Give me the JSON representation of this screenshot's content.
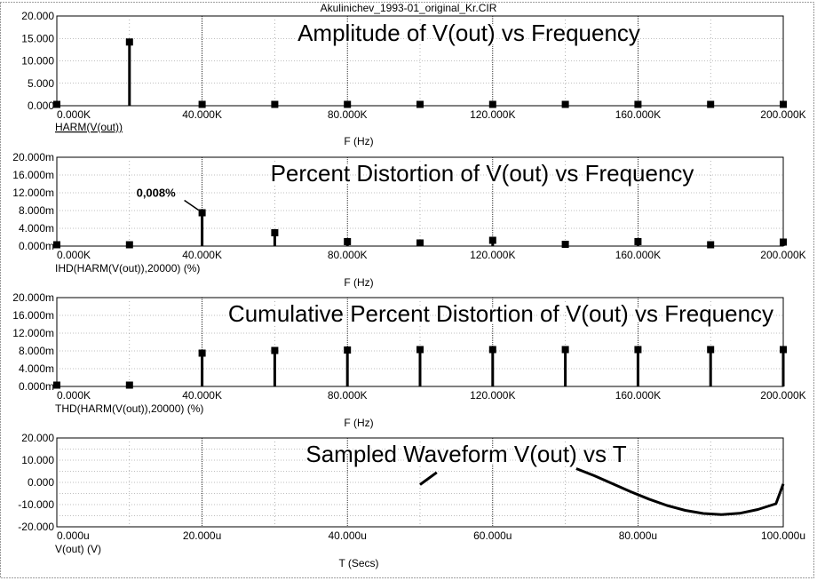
{
  "window_title": "Akulinichev_1993-01_original_Kr.CIR",
  "colors": {
    "plot": "#000000",
    "grid_major": "#000000",
    "grid_minor": "#808080",
    "background": "#ffffff"
  },
  "chart_data": [
    {
      "type": "bar",
      "title": "Amplitude of V(out) vs Frequency",
      "trace_label": "HARM(V(out))",
      "xlabel": "F (Hz)",
      "xlim": [
        0,
        200000
      ],
      "ylim": [
        0,
        20
      ],
      "x_ticks": [
        "0.000K",
        "40.000K",
        "80.000K",
        "120.000K",
        "160.000K",
        "200.000K"
      ],
      "y_ticks": [
        "0.000",
        "5.000",
        "10.000",
        "15.000",
        "20.000"
      ],
      "x": [
        0,
        20000,
        40000,
        60000,
        80000,
        100000,
        120000,
        140000,
        160000,
        180000,
        200000
      ],
      "values": [
        0,
        14.2,
        0.001,
        0.0005,
        0.0002,
        0.0001,
        0.0002,
        0.0001,
        0.0002,
        0.0001,
        0.0001
      ],
      "grid": true
    },
    {
      "type": "bar",
      "title": "Percent Distortion of V(out) vs Frequency",
      "trace_label": "IHD(HARM(V(out)),20000) (%)",
      "xlabel": "F (Hz)",
      "xlim": [
        0,
        200000
      ],
      "ylim": [
        0,
        0.02
      ],
      "x_ticks": [
        "0.000K",
        "40.000K",
        "80.000K",
        "120.000K",
        "160.000K",
        "200.000K"
      ],
      "y_ticks": [
        "0.000m",
        "4.000m",
        "8.000m",
        "12.000m",
        "16.000m",
        "20.000m"
      ],
      "x": [
        0,
        20000,
        40000,
        60000,
        80000,
        100000,
        120000,
        140000,
        160000,
        180000,
        200000
      ],
      "values": [
        0,
        0,
        0.0075,
        0.003,
        0.001,
        0.0007,
        0.0013,
        0.0004,
        0.001,
        0.0003,
        0.0009
      ],
      "annotation": {
        "text": "0,008%",
        "x": 40000,
        "y": 0.0075
      },
      "grid": true
    },
    {
      "type": "bar",
      "title": "Cumulative Percent Distortion of V(out) vs Frequency",
      "trace_label": "THD(HARM(V(out)),20000) (%)",
      "xlabel": "F (Hz)",
      "xlim": [
        0,
        200000
      ],
      "ylim": [
        0,
        0.02
      ],
      "x_ticks": [
        "0.000K",
        "40.000K",
        "80.000K",
        "120.000K",
        "160.000K",
        "200.000K"
      ],
      "y_ticks": [
        "0.000m",
        "4.000m",
        "8.000m",
        "12.000m",
        "16.000m",
        "20.000m"
      ],
      "x": [
        0,
        20000,
        40000,
        60000,
        80000,
        100000,
        120000,
        140000,
        160000,
        180000,
        200000
      ],
      "values": [
        0,
        0,
        0.0075,
        0.0081,
        0.0082,
        0.0083,
        0.0083,
        0.0083,
        0.0083,
        0.0083,
        0.0083
      ],
      "grid": true
    },
    {
      "type": "line",
      "title": "Sampled Waveform  V(out) vs T",
      "trace_label": "V(out) (V)",
      "xlabel": "T (Secs)",
      "xlim": [
        0,
        0.0001
      ],
      "ylim": [
        -20,
        20
      ],
      "x_ticks": [
        "0.000u",
        "20.000u",
        "40.000u",
        "60.000u",
        "80.000u",
        "100.000u"
      ],
      "y_ticks": [
        "-20.000",
        "-10.000",
        "0.000",
        "10.000",
        "20.000"
      ],
      "segments": [
        {
          "x": [
            5e-05,
            5.23e-05
          ],
          "y": [
            -1.0,
            4.5
          ]
        },
        {
          "x": [
            7.15e-05,
            7.4e-05,
            7.65e-05,
            7.9e-05,
            8.15e-05,
            8.4e-05,
            8.65e-05,
            8.9e-05,
            9.15e-05,
            9.4e-05,
            9.65e-05,
            9.9e-05,
            0.0001
          ],
          "y": [
            6.2,
            3.0,
            -0.6,
            -4.2,
            -7.5,
            -10.4,
            -12.6,
            -14.0,
            -14.5,
            -13.9,
            -12.2,
            -9.6,
            -0.7
          ]
        }
      ],
      "grid": true
    }
  ]
}
